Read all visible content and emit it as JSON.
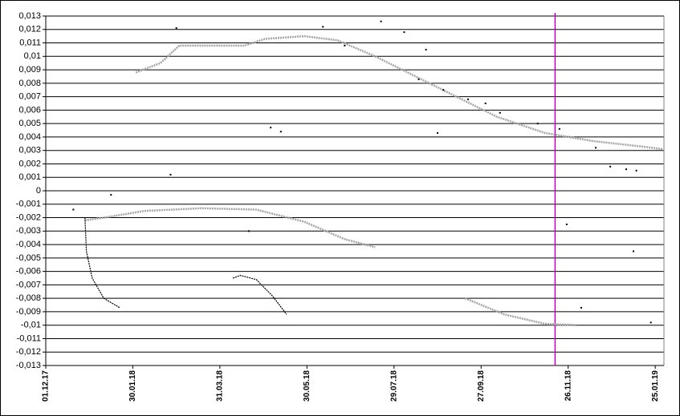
{
  "chart_data": {
    "type": "scatter",
    "xlim": [
      "01.12.17",
      "31.01.19"
    ],
    "xticks": [
      "01.12.17",
      "30.01.18",
      "31.03.18",
      "30.05.18",
      "29.07.18",
      "27.09.18",
      "26.11.18",
      "25.01.19"
    ],
    "ylim": [
      -0.013,
      0.013
    ],
    "yticks": [
      {
        "value": 0.013,
        "label": "0,013"
      },
      {
        "value": 0.012,
        "label": "0,012"
      },
      {
        "value": 0.011,
        "label": "0,011"
      },
      {
        "value": 0.01,
        "label": "0,01"
      },
      {
        "value": 0.009,
        "label": "0,009"
      },
      {
        "value": 0.008,
        "label": "0,008"
      },
      {
        "value": 0.007,
        "label": "0,007"
      },
      {
        "value": 0.006,
        "label": "0,006"
      },
      {
        "value": 0.005,
        "label": "0,005"
      },
      {
        "value": 0.004,
        "label": "0,004"
      },
      {
        "value": 0.003,
        "label": "0,003"
      },
      {
        "value": 0.002,
        "label": "0,002"
      },
      {
        "value": 0.001,
        "label": "0,001"
      },
      0,
      {
        "value": -0.001,
        "label": "-0,001"
      },
      {
        "value": -0.002,
        "label": "-0,002"
      },
      {
        "value": -0.003,
        "label": "-0,003"
      },
      {
        "value": -0.004,
        "label": "-0,004"
      },
      {
        "value": -0.005,
        "label": "-0,005"
      },
      {
        "value": -0.006,
        "label": "-0,006"
      },
      {
        "value": -0.007,
        "label": "-0,007"
      },
      {
        "value": -0.008,
        "label": "-0,008"
      },
      {
        "value": -0.009,
        "label": "-0,009"
      },
      {
        "value": -0.01,
        "label": "-0,01"
      },
      {
        "value": -0.011,
        "label": "-0,011"
      },
      {
        "value": -0.012,
        "label": "-0,012"
      },
      {
        "value": -0.013,
        "label": "-0,013"
      }
    ],
    "grid": true,
    "marker_x": "17.11.18",
    "marker_color": "#c000c0",
    "series": [
      {
        "style": "line",
        "color": "#a6a6a6",
        "x": [
          "01.02.18",
          "18.02.18",
          "03.03.18",
          "17.04.18",
          "01.05.18",
          "28.05.18",
          "20.06.18",
          "16.07.18",
          "13.08.18",
          "10.09.18",
          "08.10.18",
          "10.11.18",
          "13.12.18",
          "15.01.19",
          "30.01.19"
        ],
        "values": [
          0.0088,
          0.0095,
          0.0108,
          0.0108,
          0.0113,
          0.0115,
          0.0112,
          0.01,
          0.0085,
          0.007,
          0.0055,
          0.0043,
          0.0037,
          0.0033,
          0.0031
        ]
      },
      {
        "style": "line",
        "color": "#a6a6a6",
        "x": [
          "28.12.17",
          "10.01.18",
          "07.02.18",
          "18.03.18",
          "25.04.18",
          "28.05.18",
          "25.06.18",
          "16.07.18",
          "18.08.18",
          "16.09.18",
          "13.10.18",
          "10.11.18",
          "02.12.18"
        ],
        "values": [
          -0.0022,
          -0.002,
          -0.0015,
          -0.0013,
          -0.0014,
          -0.0023,
          -0.0036,
          -0.0042,
          null,
          -0.008,
          -0.0092,
          -0.0099,
          -0.01
        ]
      },
      {
        "style": "line",
        "color": "#000000",
        "x": [
          "28.12.17",
          "29.12.17",
          "02.01.18",
          "10.01.18",
          "21.01.18"
        ],
        "values": [
          -0.002,
          -0.0045,
          -0.0065,
          -0.008,
          -0.0087
        ]
      },
      {
        "style": "line",
        "color": "#000000",
        "x": [
          "09.04.18",
          "14.04.18",
          "25.04.18",
          "06.05.18",
          "16.05.18"
        ],
        "values": [
          -0.0065,
          -0.0063,
          -0.0066,
          -0.0078,
          -0.0092
        ]
      },
      {
        "style": "dots",
        "color": "#000000",
        "x": [
          "15.08.18",
          "01.09.18",
          "18.09.18",
          "10.10.18",
          "05.11.18",
          "20.11.18",
          "15.12.18",
          "25.12.18",
          "05.01.19",
          "12.01.19",
          "10.06.18",
          "25.06.18",
          "20.07.18",
          "05.08.18",
          "20.08.18",
          "05.05.18",
          "12.05.18",
          "20.12.17",
          "15.01.18",
          "01.03.18",
          "25.02.18",
          "20.04.18",
          "28.08.18",
          "30.09.18",
          "25.11.18",
          "10.01.19",
          "05.12.18",
          "22.01.19"
        ],
        "values": [
          0.0083,
          0.0075,
          0.0068,
          0.0058,
          0.005,
          0.0046,
          0.0032,
          0.0018,
          0.0016,
          0.0015,
          0.0122,
          0.0108,
          0.0126,
          0.0118,
          0.0105,
          0.0047,
          0.0044,
          -0.0014,
          -0.0003,
          0.0121,
          0.0012,
          -0.003,
          0.0043,
          0.0065,
          -0.0025,
          -0.0045,
          -0.0087,
          -0.0098
        ]
      }
    ]
  }
}
